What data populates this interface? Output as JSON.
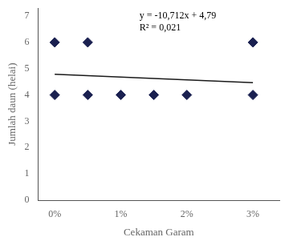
{
  "chart_data": {
    "type": "scatter",
    "x_label": "Cekaman Garam",
    "y_label": "Jumlah daun (helai)",
    "annotations": [
      "y = -10,712x + 4,79",
      "R² = 0,021"
    ],
    "series": [
      {
        "type": "scatter",
        "marker": "diamond",
        "color": "#1a2050",
        "x": [
          0,
          0,
          0.5,
          0.5,
          1.0,
          1.5,
          2.0,
          3.0,
          3.0
        ],
        "values": [
          6,
          4,
          6,
          4,
          4,
          4,
          4,
          6,
          4
        ]
      },
      {
        "type": "line",
        "line_style": "solid",
        "color": "#1a1a1a",
        "x": [
          0,
          3
        ],
        "values": [
          4.79,
          4.46864
        ]
      }
    ],
    "xlim": [
      -0.25,
      3.4
    ],
    "ylim": [
      0,
      7.3
    ],
    "xticks": [
      {
        "value": 0,
        "label": "0%"
      },
      {
        "value": 1,
        "label": "1%"
      },
      {
        "value": 2,
        "label": "2%"
      },
      {
        "value": 3,
        "label": "3%"
      }
    ],
    "yticks": [
      0,
      1,
      2,
      3,
      4,
      5,
      6,
      7
    ],
    "grid": false
  }
}
